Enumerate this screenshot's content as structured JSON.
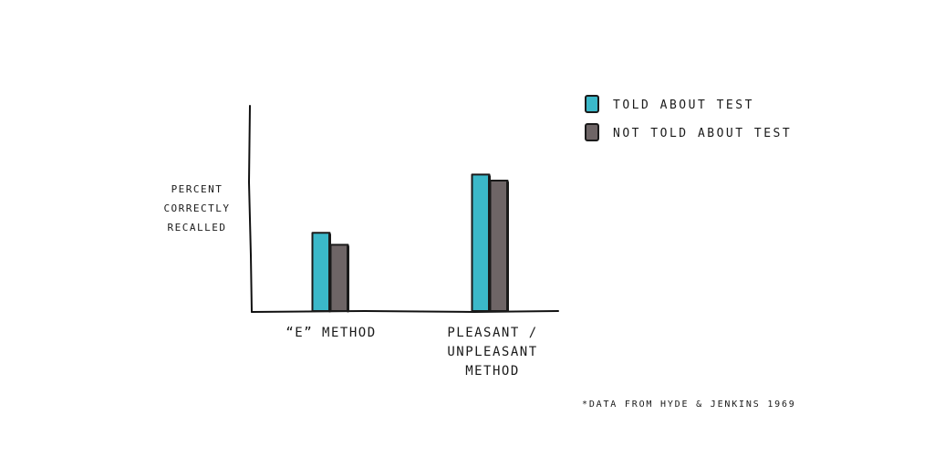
{
  "chart_data": {
    "type": "bar",
    "title": "",
    "ylabel": [
      "PERCENT",
      "CORRECTLY",
      "RECALLED"
    ],
    "xlabel": "",
    "categories": [
      [
        "“E” METHOD"
      ],
      [
        "PLEASANT /",
        "UNPLEASANT",
        "METHOD"
      ]
    ],
    "series": [
      {
        "name": "TOLD ABOUT TEST",
        "color": "#3bb8c9",
        "values": [
          39,
          68
        ]
      },
      {
        "name": "NOT TOLD ABOUT TEST",
        "color": "#6e6566",
        "values": [
          33,
          65
        ]
      }
    ],
    "ylim": [
      0,
      100
    ],
    "legend_position": "top-right",
    "grid": false,
    "source_note": "*DATA FROM HYDE & JENKINS 1969"
  }
}
